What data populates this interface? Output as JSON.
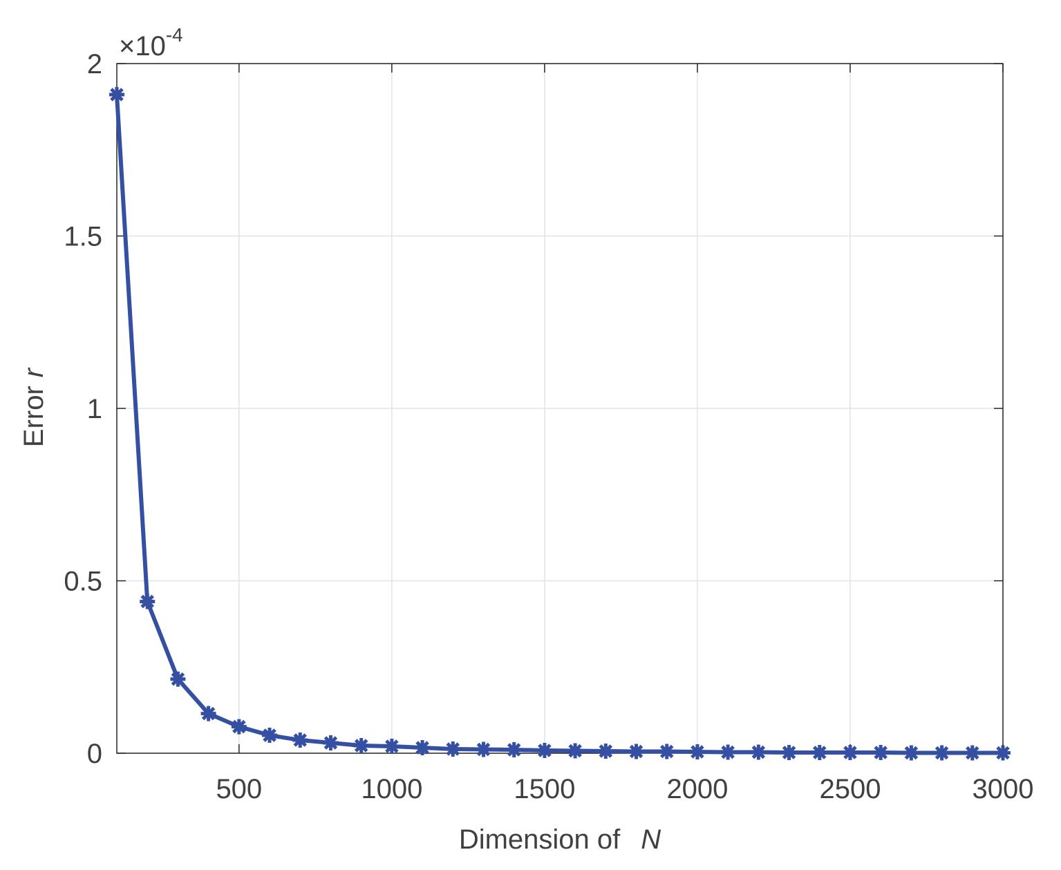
{
  "chart_data": {
    "type": "line",
    "xlabel": {
      "text": "Dimension of",
      "variable": "N"
    },
    "ylabel": {
      "text": "Error",
      "variable": "r"
    },
    "y_multiplier": {
      "base": "×10",
      "exponent": "-4"
    },
    "x": [
      100,
      200,
      300,
      400,
      500,
      600,
      700,
      800,
      900,
      1000,
      1100,
      1200,
      1300,
      1400,
      1500,
      1600,
      1700,
      1800,
      1900,
      2000,
      2100,
      2200,
      2300,
      2400,
      2500,
      2600,
      2700,
      2800,
      2900,
      3000
    ],
    "series": [
      {
        "color": "#3550a2",
        "marker": "asterisk",
        "values": [
          1.91,
          0.44,
          0.215,
          0.115,
          0.077,
          0.052,
          0.038,
          0.03,
          0.022,
          0.02,
          0.016,
          0.012,
          0.011,
          0.01,
          0.008,
          0.007,
          0.006,
          0.005,
          0.005,
          0.004,
          0.003,
          0.003,
          0.002,
          0.002,
          0.002,
          0.002,
          0.001,
          0.001,
          0.001,
          0.001
        ]
      }
    ],
    "xlim": [
      100,
      3000
    ],
    "ylim": [
      0,
      2
    ],
    "xticks": [
      500,
      1000,
      1500,
      2000,
      2500,
      3000
    ],
    "yticks": [
      0,
      0.5,
      1,
      1.5,
      2
    ],
    "grid": true
  }
}
